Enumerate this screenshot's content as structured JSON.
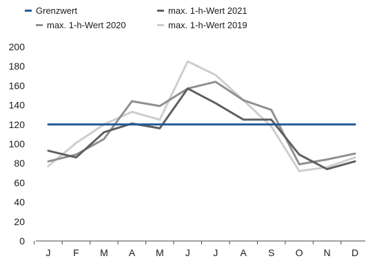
{
  "chart_data": {
    "type": "line",
    "title": "",
    "xlabel": "",
    "ylabel": "",
    "categories": [
      "J",
      "F",
      "M",
      "A",
      "M",
      "J",
      "J",
      "A",
      "S",
      "O",
      "N",
      "D"
    ],
    "ylim": [
      0,
      200
    ],
    "yticks": [
      0,
      20,
      40,
      60,
      80,
      100,
      120,
      140,
      160,
      180,
      200
    ],
    "grid": false,
    "legend_position": "top-left",
    "series": [
      {
        "name": "Grenzwert",
        "color": "#1f5a96",
        "values": [
          120,
          120,
          120,
          120,
          120,
          120,
          120,
          120,
          120,
          120,
          120,
          120
        ]
      },
      {
        "name": "max. 1-h-Wert 2021",
        "color": "#5f5f5f",
        "values": [
          93,
          86,
          112,
          121,
          116,
          157,
          142,
          125,
          125,
          89,
          74,
          82
        ]
      },
      {
        "name": "max. 1-h-Wert 2020",
        "color": "#8f8f8f",
        "values": [
          82,
          89,
          105,
          144,
          139,
          157,
          164,
          145,
          135,
          79,
          84,
          90
        ]
      },
      {
        "name": "max. 1-h-Wert 2019",
        "color": "#cdcdcd",
        "values": [
          77,
          101,
          120,
          133,
          125,
          185,
          171,
          145,
          118,
          72,
          76,
          86
        ]
      }
    ]
  }
}
